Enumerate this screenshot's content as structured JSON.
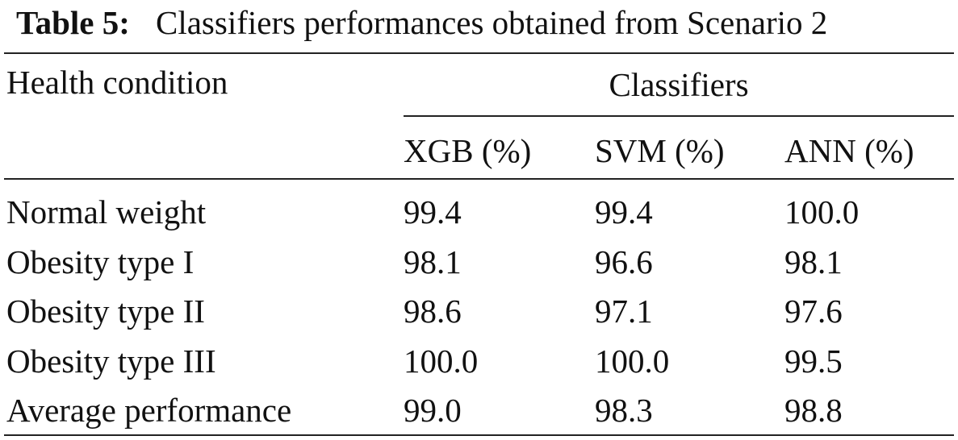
{
  "header": {
    "label": "Table 5:",
    "title": "Classifiers performances obtained from Scenario 2"
  },
  "table": {
    "row_header": "Health condition",
    "group_header": "Classifiers",
    "columns": [
      "XGB (%)",
      "SVM (%)",
      "ANN (%)"
    ],
    "rows": [
      [
        "Normal weight",
        "99.4",
        "99.4",
        "100.0"
      ],
      [
        "Obesity type I",
        "98.1",
        "96.6",
        "98.1"
      ],
      [
        "Obesity type II",
        "98.6",
        "97.1",
        "97.6"
      ],
      [
        "Obesity type III",
        "100.0",
        "100.0",
        "99.5"
      ],
      [
        "Average performance",
        "99.0",
        "98.3",
        "98.8"
      ]
    ]
  }
}
